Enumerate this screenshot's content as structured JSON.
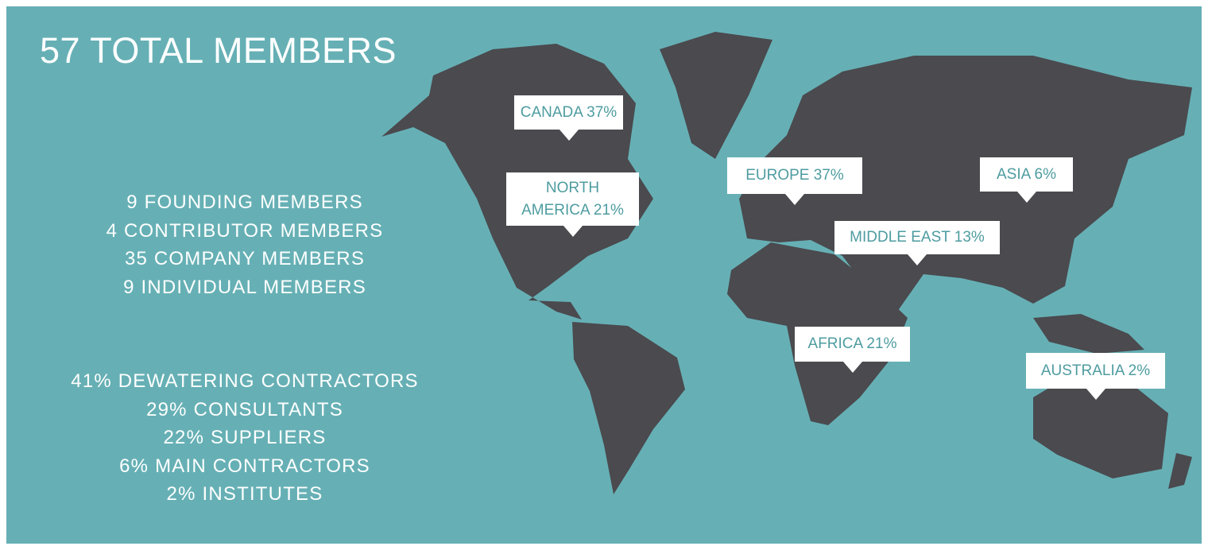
{
  "title": "57 TOTAL MEMBERS",
  "membership_types": [
    "9 FOUNDING MEMBERS",
    "4 CONTRIBUTOR MEMBERS",
    "35 COMPANY MEMBERS",
    "9 INDIVIDUAL MEMBERS"
  ],
  "member_categories": [
    "41% DEWATERING CONTRACTORS",
    "29% CONSULTANTS",
    "22% SUPPLIERS",
    "6% MAIN CONTRACTORS",
    "2% INSTITUTES"
  ],
  "regions": {
    "canada": "CANADA 37%",
    "north_america_line1": "NORTH",
    "north_america_line2": "AMERICA 21%",
    "europe": "EUROPE 37%",
    "asia": "ASIA 6%",
    "middle_east": "MIDDLE EAST 13%",
    "africa": "AFRICA 21%",
    "australia": "AUSTRALIA 2%"
  },
  "colors": {
    "background": "#66b0b5",
    "land": "#4a4a4f",
    "callout_text": "#4e9ca0",
    "callout_bg": "#ffffff"
  }
}
